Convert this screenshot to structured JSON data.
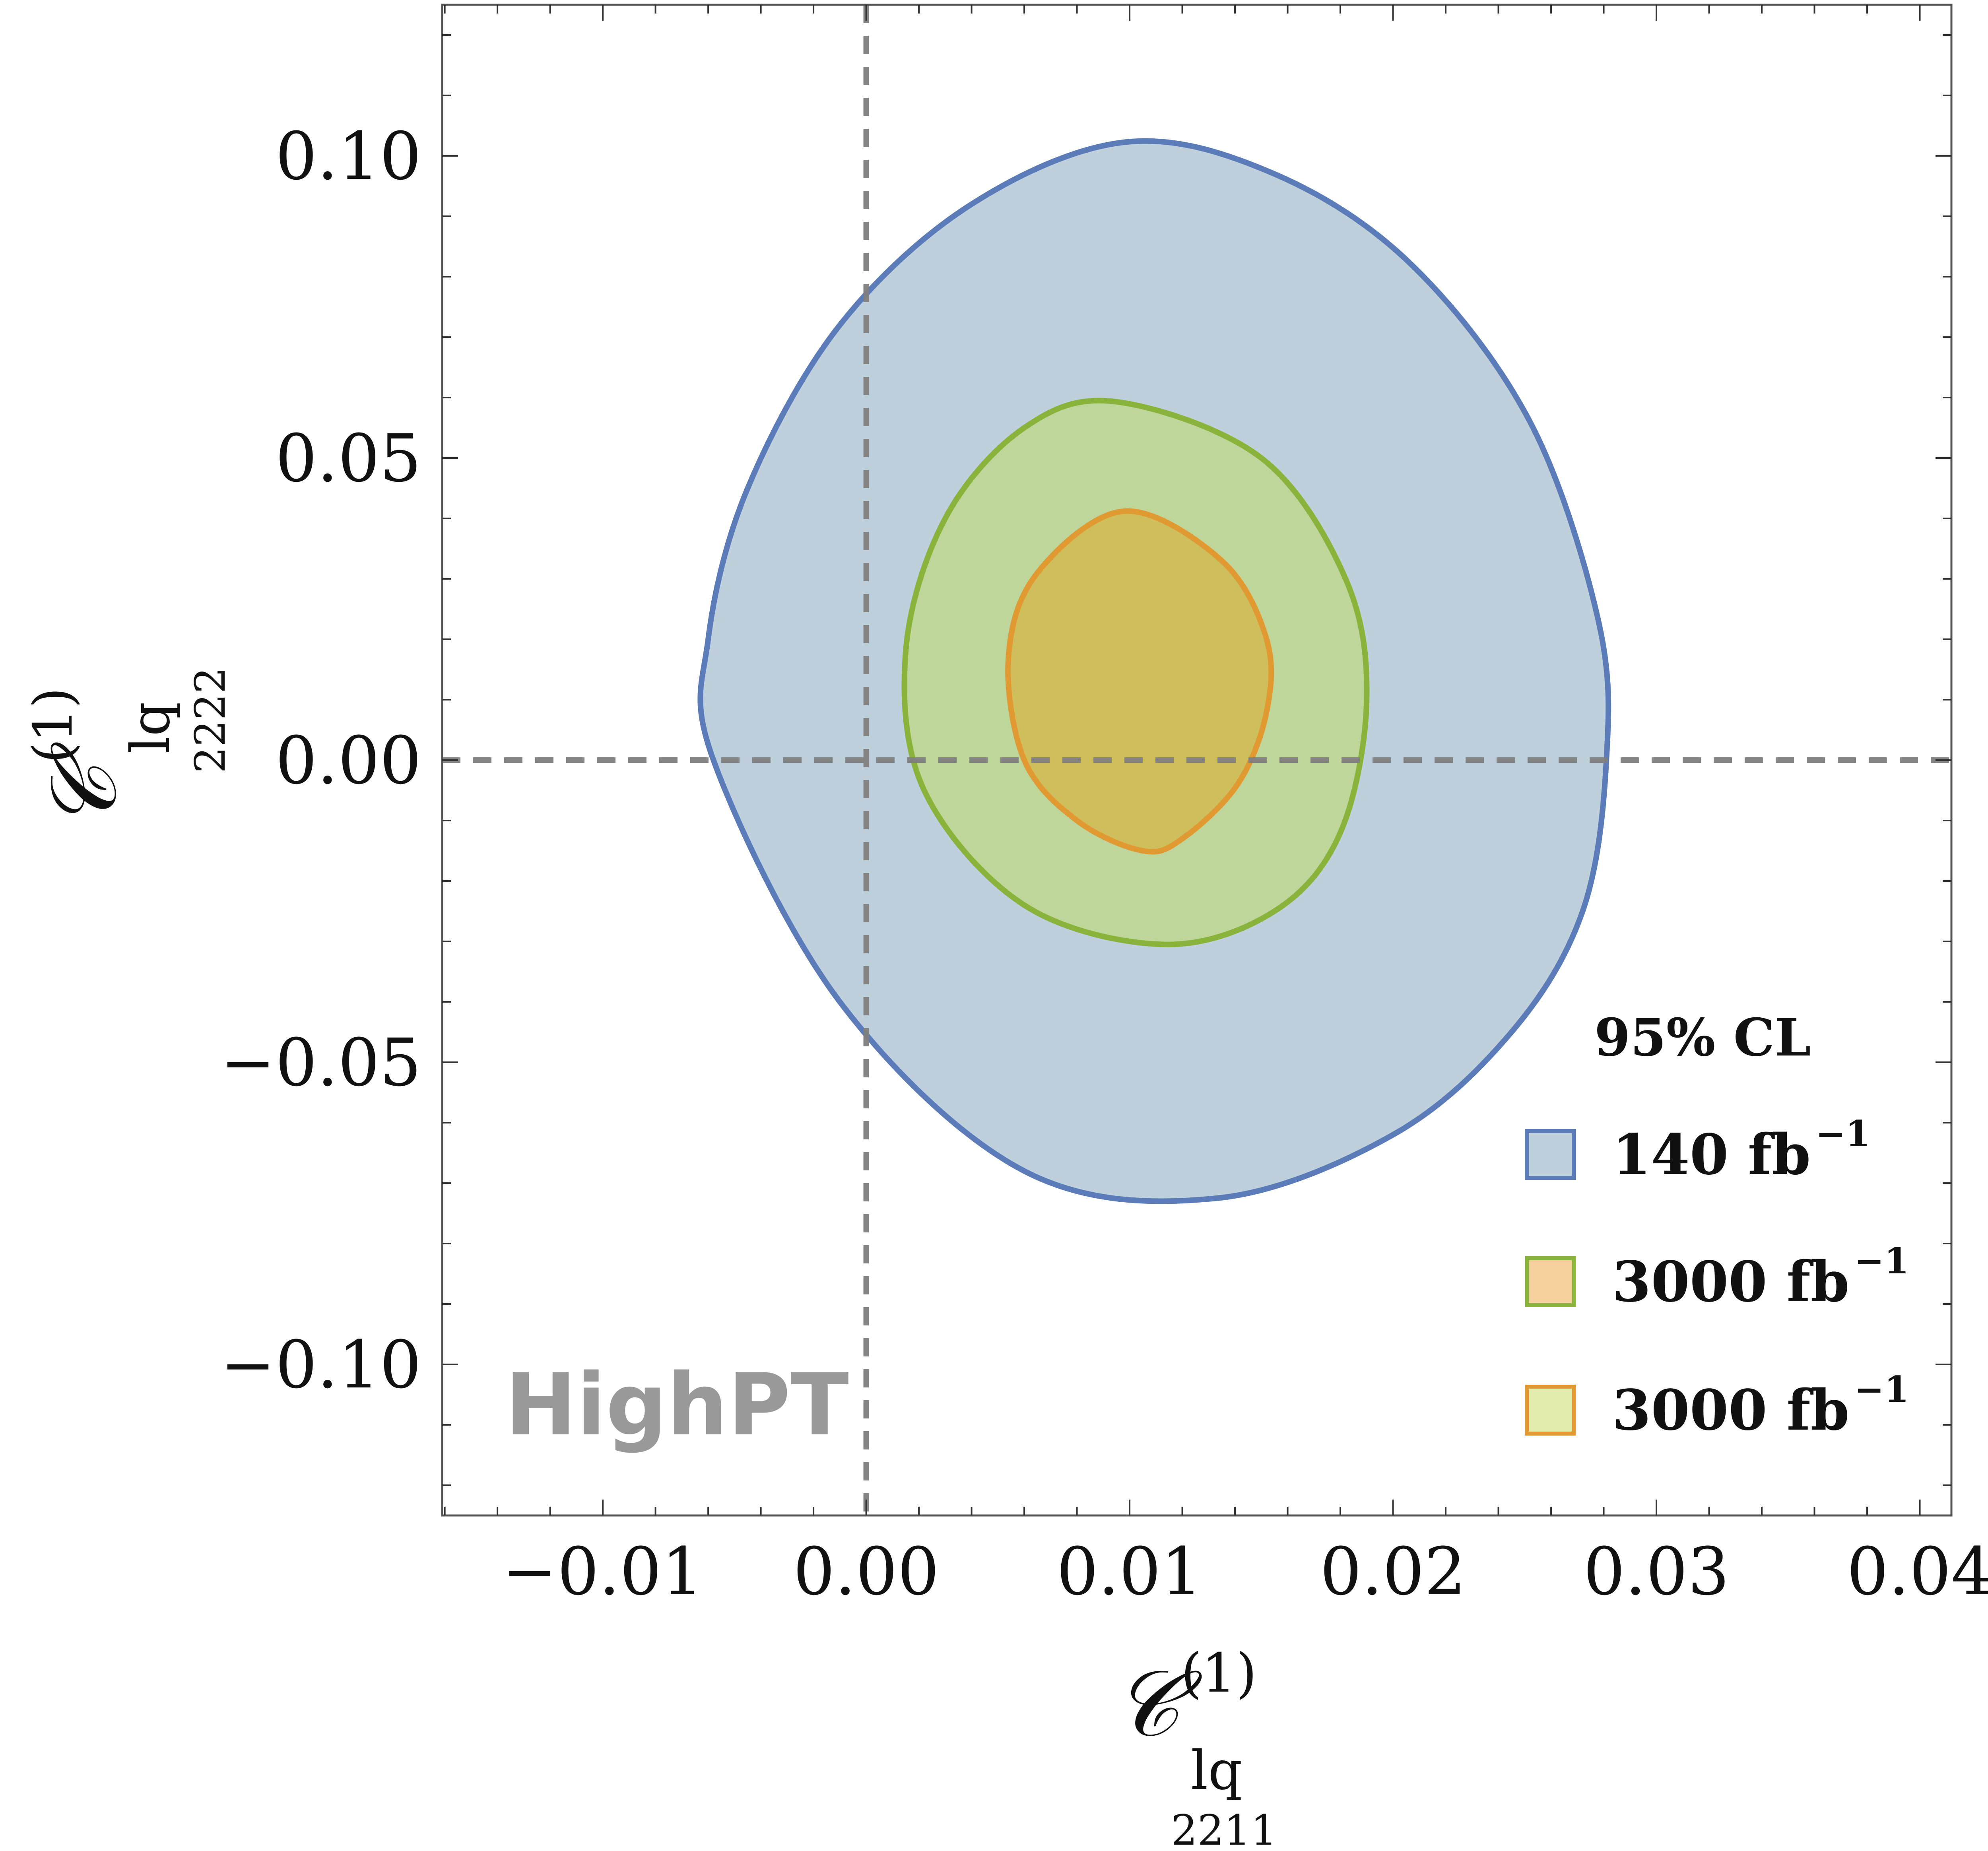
{
  "chart_data": {
    "type": "contour",
    "x_axis": {
      "symbol": "𝒞",
      "superscript": "(1)",
      "subscript": "lq",
      "indices": "2211",
      "lim": [
        -0.0161,
        0.0412
      ],
      "ticks": [
        -0.01,
        0.0,
        0.01,
        0.02,
        0.03,
        0.04
      ],
      "tick_labels": [
        "−0.01",
        "0.00",
        "0.01",
        "0.02",
        "0.03",
        "0.04"
      ]
    },
    "y_axis": {
      "symbol": "𝒞",
      "superscript": "(1)",
      "subscript": "lq",
      "indices": "2222",
      "lim": [
        -0.125,
        0.125
      ],
      "ticks": [
        -0.1,
        -0.05,
        0.0,
        0.05,
        0.1
      ],
      "tick_labels": [
        "−0.10",
        "−0.05",
        "0.00",
        "0.05",
        "0.10"
      ]
    },
    "reference_lines": {
      "x": 0.0,
      "y": 0.0,
      "style": "dashed",
      "color": "#808080"
    },
    "legend": {
      "title": "95% CL",
      "placement": "lower-right",
      "entries": [
        {
          "label": "140 fb",
          "exponent": "−1",
          "series_index": 0
        },
        {
          "label": "3000 fb",
          "exponent": "−1",
          "series_index": 1
        },
        {
          "label": "3000 fb",
          "exponent": "−1",
          "series_index": 2
        }
      ]
    },
    "series": [
      {
        "stroke": "#5b7cb8",
        "fill": "#bdd0dc",
        "fill_opacity": 1,
        "points": [
          [
            0.0099,
            0.1023
          ],
          [
            0.0155,
            0.097
          ],
          [
            0.0207,
            0.082
          ],
          [
            0.0252,
            0.056
          ],
          [
            0.0278,
            0.023
          ],
          [
            0.0281,
            0.0
          ],
          [
            0.0272,
            -0.025
          ],
          [
            0.0245,
            -0.045
          ],
          [
            0.02,
            -0.062
          ],
          [
            0.0133,
            -0.0725
          ],
          [
            0.006,
            -0.068
          ],
          [
            -0.001,
            -0.04
          ],
          [
            -0.0058,
            0.0
          ],
          [
            -0.006,
            0.02
          ],
          [
            -0.0045,
            0.045
          ],
          [
            -0.001,
            0.072
          ],
          [
            0.004,
            0.092
          ]
        ]
      },
      {
        "stroke": "#8ab33b",
        "fill": "#bfd69a",
        "fill_opacity": 1,
        "points": [
          [
            0.0095,
            0.0593
          ],
          [
            0.015,
            0.05
          ],
          [
            0.0182,
            0.03
          ],
          [
            0.019,
            0.01
          ],
          [
            0.018,
            -0.012
          ],
          [
            0.0155,
            -0.025
          ],
          [
            0.0113,
            -0.0305
          ],
          [
            0.006,
            -0.024
          ],
          [
            0.0022,
            -0.005
          ],
          [
            0.0015,
            0.018
          ],
          [
            0.003,
            0.04
          ],
          [
            0.006,
            0.055
          ]
        ]
      },
      {
        "stroke": "#e19a32",
        "fill": "#cfbf5c",
        "fill_opacity": 1,
        "points": [
          [
            0.0098,
            0.0412
          ],
          [
            0.0135,
            0.033
          ],
          [
            0.0152,
            0.02
          ],
          [
            0.0152,
            0.008
          ],
          [
            0.0141,
            -0.004
          ],
          [
            0.012,
            -0.013
          ],
          [
            0.0105,
            -0.015
          ],
          [
            0.008,
            -0.01
          ],
          [
            0.006,
            0.0
          ],
          [
            0.0054,
            0.017
          ],
          [
            0.0065,
            0.031
          ]
        ]
      }
    ]
  },
  "watermark": "HighPT"
}
